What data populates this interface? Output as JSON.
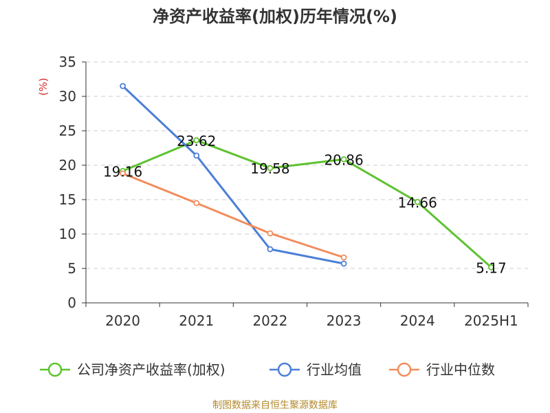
{
  "chart_data": {
    "type": "line",
    "title": "净资产收益率(加权)历年情况(%)",
    "ylabel": "(%)",
    "xlabel": "",
    "categories": [
      "2020",
      "2021",
      "2022",
      "2023",
      "2024",
      "2025H1"
    ],
    "ylim": [
      0,
      35
    ],
    "yticks": [
      0,
      5,
      10,
      15,
      20,
      25,
      30,
      35
    ],
    "grid": true,
    "legend_position": "bottom",
    "series": [
      {
        "name": "公司净资产收益率(加权)",
        "color": "#5ec22f",
        "values": [
          19.16,
          23.62,
          19.58,
          20.86,
          14.66,
          5.17
        ],
        "data_labels": [
          "19.16",
          "23.62",
          "19.58",
          "20.86",
          "14.66",
          "5.17"
        ]
      },
      {
        "name": "行业均值",
        "color": "#4a7fd6",
        "values": [
          31.5,
          21.4,
          7.8,
          5.7,
          null,
          null
        ]
      },
      {
        "name": "行业中位数",
        "color": "#f28c5c",
        "values": [
          18.8,
          14.5,
          10.1,
          6.6,
          null,
          null
        ]
      }
    ]
  },
  "source": "制图数据来自恒生聚源数据库"
}
